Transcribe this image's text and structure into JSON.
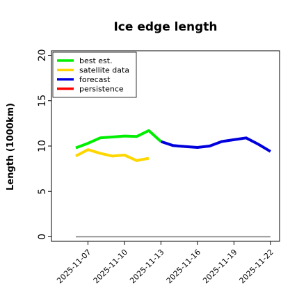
{
  "chart_data": {
    "type": "line",
    "title": "Ice edge length",
    "xlabel": "",
    "ylabel": "Length (1000km)",
    "ylim": [
      -0.5,
      20.5
    ],
    "yticks": [
      0,
      5,
      10,
      15,
      20
    ],
    "xlim": [
      "2025-11-04",
      "2025-11-22T18:00"
    ],
    "xticks": [
      "2025-11-07",
      "2025-11-10",
      "2025-11-13",
      "2025-11-16",
      "2025-11-19",
      "2025-11-22"
    ],
    "xtick_colors": [
      "#000000",
      "#000000",
      "#008000",
      "#000000",
      "#000000",
      "#000000"
    ],
    "legend_position": "top-left",
    "series": [
      {
        "name": "best est.",
        "color": "#00ee00",
        "x": [
          "2025-11-06",
          "2025-11-07",
          "2025-11-08",
          "2025-11-09",
          "2025-11-10",
          "2025-11-11",
          "2025-11-12",
          "2025-11-13"
        ],
        "y": [
          9.8,
          10.3,
          10.9,
          11.0,
          11.1,
          11.05,
          11.7,
          10.5
        ]
      },
      {
        "name": "satellite data",
        "color": "#ffd700",
        "x": [
          "2025-11-06",
          "2025-11-07",
          "2025-11-08",
          "2025-11-09",
          "2025-11-10",
          "2025-11-11",
          "2025-11-12"
        ],
        "y": [
          8.9,
          9.6,
          9.2,
          8.9,
          9.0,
          8.4,
          8.65
        ]
      },
      {
        "name": "forecast",
        "color": "#0000dd",
        "x": [
          "2025-11-13",
          "2025-11-14",
          "2025-11-15",
          "2025-11-16",
          "2025-11-17",
          "2025-11-18",
          "2025-11-19",
          "2025-11-20",
          "2025-11-21",
          "2025-11-22"
        ],
        "y": [
          10.5,
          10.05,
          9.95,
          9.85,
          10.0,
          10.5,
          10.7,
          10.9,
          10.2,
          9.4
        ]
      },
      {
        "name": "persistence",
        "color": "#ff0000",
        "x": [],
        "y": []
      }
    ],
    "reference_line": {
      "color": "#777777",
      "x": [
        "2025-11-06",
        "2025-11-22"
      ],
      "y": [
        0,
        0
      ]
    }
  }
}
